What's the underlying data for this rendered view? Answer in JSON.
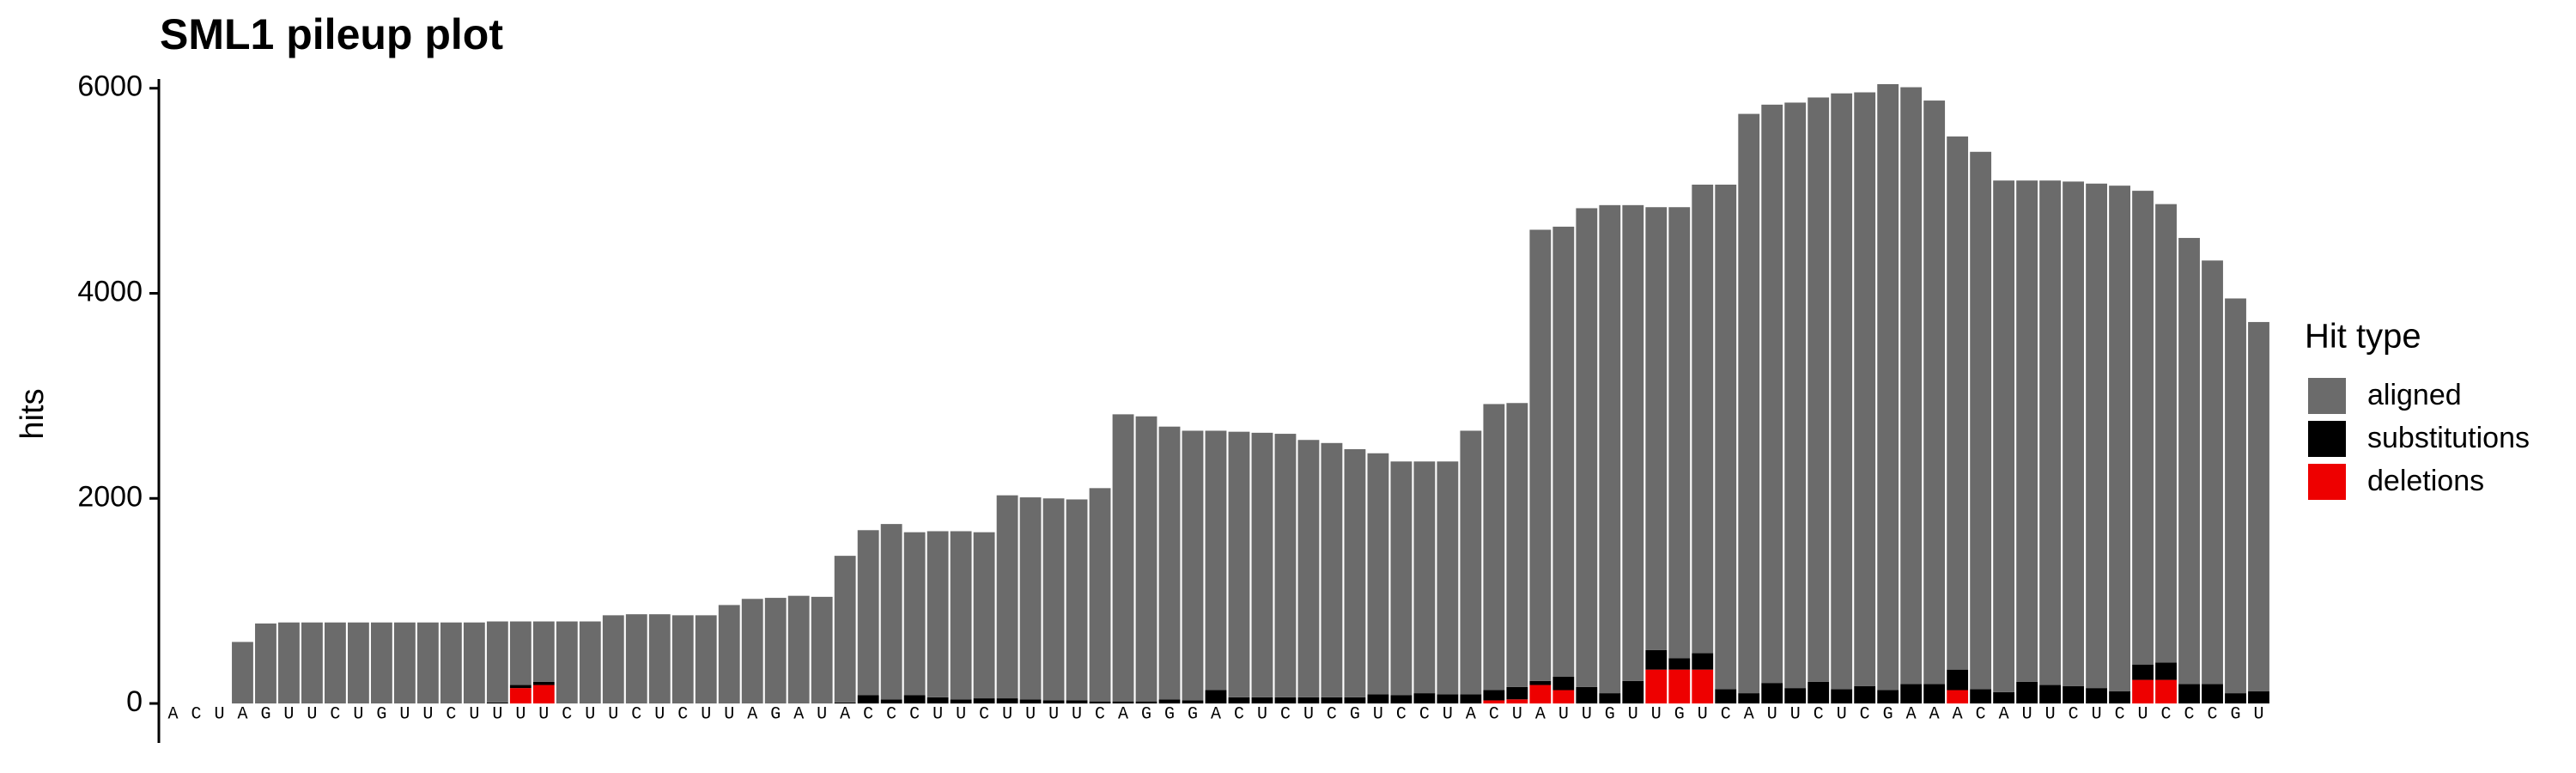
{
  "chart_data": {
    "type": "stacked_bar",
    "title": "SML1 pileup plot",
    "ylabel": "hits",
    "legend_title": "Hit type",
    "legend": "right",
    "categories": [
      "A",
      "C",
      "U",
      "A",
      "G",
      "U",
      "U",
      "C",
      "U",
      "G",
      "U",
      "U",
      "C",
      "U",
      "U",
      "U",
      "U",
      "C",
      "U",
      "U",
      "C",
      "U",
      "C",
      "U",
      "U",
      "A",
      "G",
      "A",
      "U",
      "A",
      "C",
      "C",
      "C",
      "U",
      "U",
      "C",
      "U",
      "U",
      "U",
      "U",
      "C",
      "A",
      "G",
      "G",
      "G",
      "A",
      "C",
      "U",
      "C",
      "U",
      "C",
      "G",
      "U",
      "C",
      "C",
      "U",
      "A",
      "C",
      "U",
      "A",
      "U",
      "U",
      "G",
      "U",
      "U",
      "G",
      "U",
      "C",
      "A",
      "U",
      "U",
      "C",
      "U",
      "C",
      "G",
      "A",
      "A",
      "A",
      "C",
      "A",
      "U",
      "U",
      "C",
      "U",
      "C",
      "U",
      "C",
      "C",
      "C",
      "G",
      "U"
    ],
    "series": [
      {
        "name": "deletions",
        "color": "#ee0000",
        "values": [
          0,
          0,
          0,
          0,
          0,
          0,
          0,
          0,
          0,
          0,
          0,
          0,
          0,
          0,
          0,
          150,
          180,
          0,
          0,
          0,
          0,
          0,
          0,
          0,
          0,
          0,
          0,
          0,
          0,
          0,
          0,
          0,
          0,
          0,
          0,
          0,
          0,
          0,
          0,
          0,
          0,
          0,
          0,
          0,
          0,
          0,
          0,
          0,
          0,
          0,
          0,
          0,
          0,
          0,
          0,
          0,
          0,
          30,
          40,
          180,
          130,
          0,
          0,
          0,
          330,
          330,
          330,
          0,
          0,
          0,
          0,
          0,
          0,
          0,
          0,
          0,
          0,
          130,
          0,
          0,
          0,
          0,
          0,
          0,
          0,
          230,
          230,
          0,
          0,
          0,
          0
        ]
      },
      {
        "name": "substitutions",
        "color": "#000000",
        "values": [
          0,
          0,
          0,
          0,
          0,
          0,
          0,
          0,
          0,
          0,
          0,
          0,
          0,
          0,
          10,
          30,
          30,
          0,
          0,
          0,
          0,
          0,
          0,
          0,
          0,
          0,
          0,
          0,
          0,
          10,
          80,
          40,
          80,
          60,
          40,
          50,
          50,
          40,
          30,
          30,
          20,
          20,
          20,
          40,
          30,
          130,
          60,
          60,
          60,
          60,
          60,
          60,
          90,
          80,
          100,
          90,
          90,
          100,
          120,
          40,
          130,
          160,
          100,
          220,
          190,
          110,
          160,
          140,
          100,
          200,
          150,
          210,
          140,
          170,
          130,
          190,
          190,
          200,
          140,
          110,
          210,
          180,
          170,
          150,
          120,
          150,
          170,
          190,
          190,
          100,
          120
        ]
      },
      {
        "name": "aligned",
        "color": "#6b6b6b",
        "values": [
          0,
          0,
          0,
          600,
          780,
          790,
          790,
          790,
          790,
          790,
          790,
          790,
          790,
          790,
          790,
          620,
          590,
          800,
          800,
          860,
          870,
          870,
          860,
          860,
          960,
          1020,
          1030,
          1050,
          1040,
          1430,
          1610,
          1710,
          1590,
          1620,
          1640,
          1620,
          1980,
          1970,
          1970,
          1960,
          2080,
          2800,
          2780,
          2660,
          2630,
          2530,
          2590,
          2580,
          2570,
          2510,
          2480,
          2420,
          2350,
          2280,
          2260,
          2270,
          2570,
          2790,
          2770,
          4400,
          4390,
          4670,
          4760,
          4640,
          4320,
          4400,
          4570,
          4920,
          5650,
          5640,
          5710,
          5700,
          5810,
          5790,
          5910,
          5820,
          5690,
          5200,
          5240,
          4990,
          4890,
          4920,
          4920,
          4920,
          4930,
          4620,
          4470,
          4350,
          4130,
          3850,
          3600
        ]
      }
    ],
    "legend_order": [
      2,
      1,
      0
    ],
    "ylim": [
      -385,
      6090
    ],
    "yticks": [
      0,
      2000,
      4000,
      6000
    ],
    "grid": false
  }
}
